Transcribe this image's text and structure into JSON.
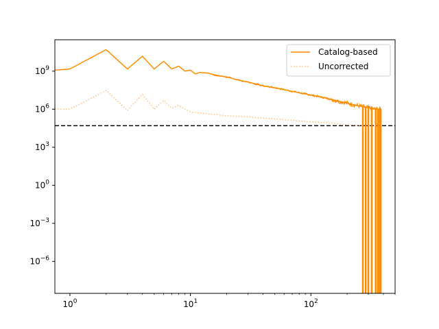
{
  "chart_data": {
    "type": "line",
    "title": "",
    "xlabel": "",
    "ylabel": "",
    "xscale": "log",
    "yscale": "log",
    "xlim": [
      0.75,
      500
    ],
    "ylim": [
      3e-09,
      300000000000.0
    ],
    "grid": false,
    "legend_position": "top-right",
    "x_ticks": [
      {
        "value": 1,
        "base": "10",
        "exp": "0"
      },
      {
        "value": 10,
        "base": "10",
        "exp": "1"
      },
      {
        "value": 100,
        "base": "10",
        "exp": "2"
      }
    ],
    "y_ticks": [
      {
        "value": 1e-06,
        "base": "10",
        "exp": "−6"
      },
      {
        "value": 0.001,
        "base": "10",
        "exp": "−3"
      },
      {
        "value": 1,
        "base": "10",
        "exp": "0"
      },
      {
        "value": 1000.0,
        "base": "10",
        "exp": "3"
      },
      {
        "value": 1000000.0,
        "base": "10",
        "exp": "6"
      },
      {
        "value": 1000000000.0,
        "base": "10",
        "exp": "9"
      }
    ],
    "reference_line": {
      "y": 50000.0,
      "style": "dashed",
      "color": "#000000"
    },
    "series": [
      {
        "name": "Catalog-based",
        "color": "#ff8c00",
        "style": "solid",
        "x": [
          0.75,
          1,
          2,
          3,
          4,
          5,
          6,
          7,
          8,
          9,
          10,
          11,
          12,
          14,
          16,
          20,
          25,
          30,
          40,
          50,
          60,
          80,
          100,
          130,
          160,
          200,
          240,
          270,
          300,
          330,
          360,
          385
        ],
        "y": [
          1200000000.0,
          1500000000.0,
          50000000000.0,
          1500000000.0,
          15000000000.0,
          1500000000.0,
          6000000000.0,
          1500000000.0,
          2500000000.0,
          1000000000.0,
          1200000000.0,
          600000000.0,
          800000000.0,
          700000000.0,
          500000000.0,
          350000000.0,
          200000000.0,
          140000000.0,
          70000000.0,
          50000000.0,
          35000000.0,
          20000000.0,
          13000000.0,
          8000000.0,
          5000000.0,
          3000000.0,
          2000000.0,
          1600000.0,
          1300000.0,
          1100000.0,
          1000000.0,
          1000000.0
        ]
      },
      {
        "name": "Uncorrected",
        "color": "#ffbf80",
        "style": "dotted",
        "x": [
          0.75,
          1,
          2,
          3,
          4,
          5,
          6,
          7,
          8,
          9,
          10,
          12,
          15,
          20,
          30,
          40,
          60,
          80,
          100,
          150,
          200,
          270
        ],
        "y": [
          1000000.0,
          1000000.0,
          30000000.0,
          800000.0,
          15000000.0,
          1000000.0,
          5000000.0,
          1200000.0,
          2000000.0,
          1000000.0,
          600000.0,
          500000.0,
          400000.0,
          300000.0,
          250000.0,
          200000.0,
          150000.0,
          120000.0,
          100000.0,
          80000.0,
          60000.0,
          50000.0
        ]
      }
    ]
  }
}
